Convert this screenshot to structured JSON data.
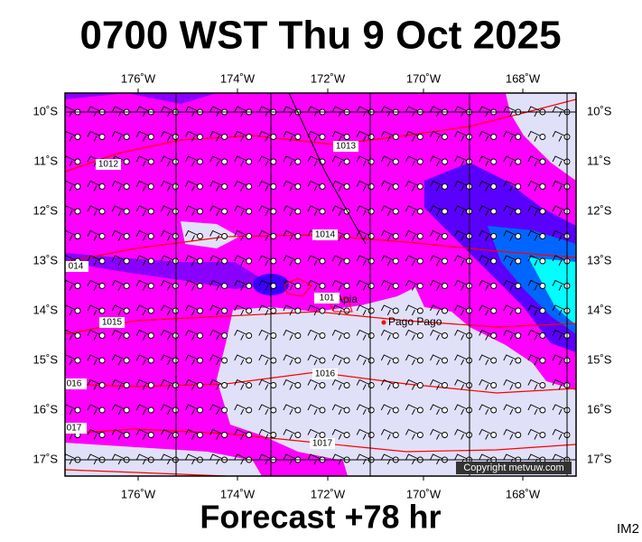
{
  "header": {
    "title": "0700 WST Thu 9 Oct 2025"
  },
  "footer": {
    "forecast": "Forecast +78 hr",
    "id": "IM2"
  },
  "map": {
    "lon_ticks": [
      "176˚W",
      "174˚W",
      "172˚W",
      "170˚W",
      "168˚W"
    ],
    "lat_ticks": [
      "10˚S",
      "11˚S",
      "12˚S",
      "13˚S",
      "14˚S",
      "15˚S",
      "16˚S",
      "17˚S"
    ],
    "isobar_labels": [
      "1013",
      "1012",
      "1014",
      "014",
      "101",
      "1015",
      "016",
      "1016",
      "017",
      "1017"
    ],
    "places": [
      "Apia",
      "Pago Pago"
    ],
    "copyright": "Copyright metvuw.com"
  }
}
